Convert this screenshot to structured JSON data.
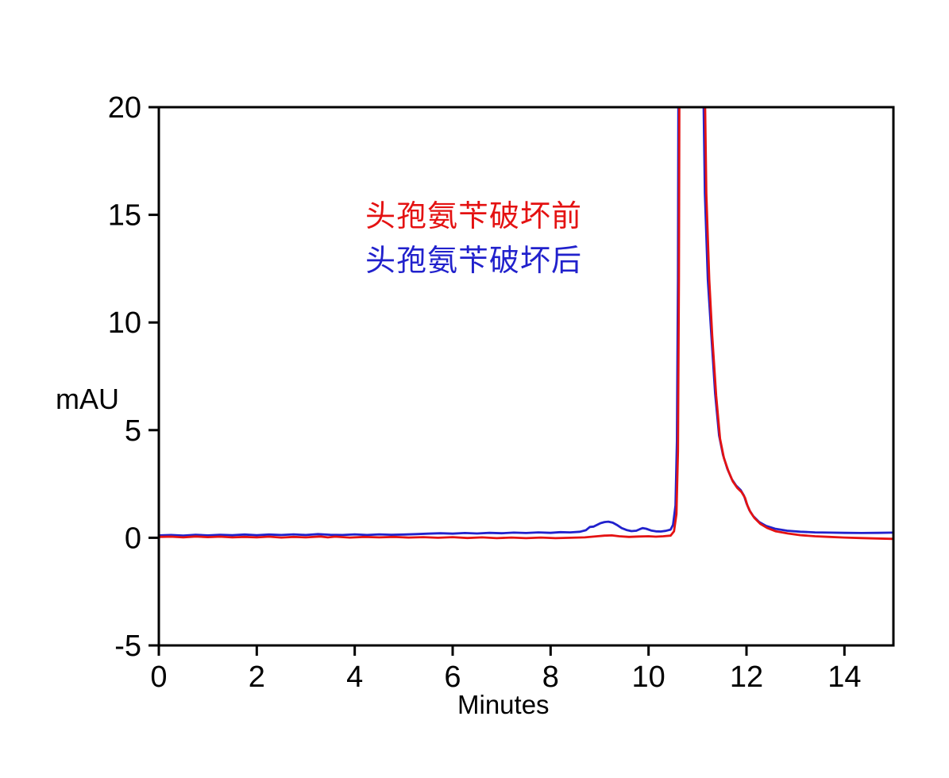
{
  "page": {
    "background": "#ffffff"
  },
  "chart_data": {
    "type": "line",
    "title": "",
    "xlabel": "Minutes",
    "ylabel": "mAU",
    "xlim": [
      0,
      15
    ],
    "ylim": [
      -5,
      20
    ],
    "x_ticks": [
      0,
      2,
      4,
      6,
      8,
      10,
      12,
      14
    ],
    "y_ticks": [
      -5,
      0,
      5,
      10,
      15,
      20
    ],
    "grid": false,
    "axis_color": "#000000",
    "legend_position": "inside-upper-center",
    "main_peak_offscale_above_mAU": 20,
    "series": [
      {
        "name": "头孢氨苄破坏前",
        "color": "#e41212",
        "points": [
          [
            0.0,
            0.04
          ],
          [
            0.25,
            0.05
          ],
          [
            0.5,
            0.02
          ],
          [
            0.75,
            0.06
          ],
          [
            1.0,
            0.03
          ],
          [
            1.25,
            0.05
          ],
          [
            1.5,
            0.02
          ],
          [
            1.75,
            0.04
          ],
          [
            2.0,
            0.02
          ],
          [
            2.25,
            0.05
          ],
          [
            2.5,
            0.01
          ],
          [
            2.75,
            0.04
          ],
          [
            3.0,
            0.02
          ],
          [
            3.3,
            0.06
          ],
          [
            3.45,
            0.02
          ],
          [
            3.6,
            0.05
          ],
          [
            3.9,
            0.01
          ],
          [
            4.2,
            0.04
          ],
          [
            4.5,
            0.02
          ],
          [
            4.8,
            0.04
          ],
          [
            5.1,
            0.01
          ],
          [
            5.4,
            0.03
          ],
          [
            5.7,
            0.0
          ],
          [
            6.0,
            0.03
          ],
          [
            6.3,
            -0.01
          ],
          [
            6.6,
            0.02
          ],
          [
            6.9,
            -0.02
          ],
          [
            7.2,
            0.01
          ],
          [
            7.5,
            -0.02
          ],
          [
            7.8,
            0.01
          ],
          [
            8.1,
            -0.02
          ],
          [
            8.4,
            0.0
          ],
          [
            8.7,
            0.02
          ],
          [
            8.95,
            0.07
          ],
          [
            9.1,
            0.1
          ],
          [
            9.25,
            0.11
          ],
          [
            9.4,
            0.07
          ],
          [
            9.6,
            0.04
          ],
          [
            9.8,
            0.06
          ],
          [
            10.0,
            0.07
          ],
          [
            10.15,
            0.05
          ],
          [
            10.3,
            0.07
          ],
          [
            10.45,
            0.1
          ],
          [
            10.52,
            0.3
          ],
          [
            10.57,
            1.1
          ],
          [
            10.6,
            4.0
          ],
          [
            10.62,
            12.0
          ],
          [
            10.65,
            40
          ],
          [
            10.72,
            120
          ],
          [
            10.95,
            120
          ],
          [
            11.08,
            40
          ],
          [
            11.13,
            24
          ],
          [
            11.18,
            16
          ],
          [
            11.24,
            12
          ],
          [
            11.3,
            9.4
          ],
          [
            11.38,
            6.6
          ],
          [
            11.46,
            4.6
          ],
          [
            11.54,
            3.7
          ],
          [
            11.63,
            3.1
          ],
          [
            11.72,
            2.62
          ],
          [
            11.81,
            2.32
          ],
          [
            11.9,
            2.12
          ],
          [
            11.97,
            1.85
          ],
          [
            12.02,
            1.5
          ],
          [
            12.08,
            1.2
          ],
          [
            12.16,
            0.92
          ],
          [
            12.28,
            0.65
          ],
          [
            12.42,
            0.46
          ],
          [
            12.6,
            0.3
          ],
          [
            12.85,
            0.2
          ],
          [
            13.1,
            0.12
          ],
          [
            13.4,
            0.07
          ],
          [
            13.7,
            0.04
          ],
          [
            14.0,
            0.01
          ],
          [
            14.3,
            -0.01
          ],
          [
            14.6,
            -0.03
          ],
          [
            15.0,
            -0.05
          ]
        ]
      },
      {
        "name": "头孢氨苄破坏后",
        "color": "#2121cc",
        "points": [
          [
            0.0,
            0.11
          ],
          [
            0.25,
            0.13
          ],
          [
            0.5,
            0.1
          ],
          [
            0.75,
            0.14
          ],
          [
            1.0,
            0.11
          ],
          [
            1.25,
            0.14
          ],
          [
            1.5,
            0.12
          ],
          [
            1.75,
            0.15
          ],
          [
            2.0,
            0.12
          ],
          [
            2.25,
            0.15
          ],
          [
            2.5,
            0.13
          ],
          [
            2.75,
            0.16
          ],
          [
            3.0,
            0.13
          ],
          [
            3.25,
            0.17
          ],
          [
            3.5,
            0.14
          ],
          [
            3.75,
            0.13
          ],
          [
            4.0,
            0.16
          ],
          [
            4.25,
            0.13
          ],
          [
            4.5,
            0.16
          ],
          [
            4.75,
            0.14
          ],
          [
            5.0,
            0.15
          ],
          [
            5.25,
            0.17
          ],
          [
            5.5,
            0.19
          ],
          [
            5.75,
            0.21
          ],
          [
            6.0,
            0.19
          ],
          [
            6.25,
            0.22
          ],
          [
            6.5,
            0.2
          ],
          [
            6.75,
            0.23
          ],
          [
            7.0,
            0.21
          ],
          [
            7.25,
            0.24
          ],
          [
            7.5,
            0.22
          ],
          [
            7.75,
            0.25
          ],
          [
            8.0,
            0.23
          ],
          [
            8.2,
            0.26
          ],
          [
            8.4,
            0.25
          ],
          [
            8.6,
            0.28
          ],
          [
            8.72,
            0.35
          ],
          [
            8.8,
            0.5
          ],
          [
            8.88,
            0.52
          ],
          [
            8.95,
            0.6
          ],
          [
            9.02,
            0.68
          ],
          [
            9.1,
            0.73
          ],
          [
            9.18,
            0.75
          ],
          [
            9.27,
            0.7
          ],
          [
            9.35,
            0.6
          ],
          [
            9.45,
            0.45
          ],
          [
            9.55,
            0.36
          ],
          [
            9.65,
            0.31
          ],
          [
            9.75,
            0.33
          ],
          [
            9.82,
            0.4
          ],
          [
            9.88,
            0.45
          ],
          [
            9.95,
            0.42
          ],
          [
            10.05,
            0.34
          ],
          [
            10.15,
            0.3
          ],
          [
            10.25,
            0.29
          ],
          [
            10.35,
            0.32
          ],
          [
            10.45,
            0.38
          ],
          [
            10.5,
            0.6
          ],
          [
            10.55,
            1.5
          ],
          [
            10.58,
            4.5
          ],
          [
            10.6,
            12
          ],
          [
            10.63,
            40
          ],
          [
            10.7,
            120
          ],
          [
            10.92,
            120
          ],
          [
            11.05,
            40
          ],
          [
            11.1,
            24
          ],
          [
            11.15,
            16
          ],
          [
            11.21,
            12
          ],
          [
            11.28,
            9.5
          ],
          [
            11.36,
            6.7
          ],
          [
            11.44,
            4.75
          ],
          [
            11.52,
            3.85
          ],
          [
            11.61,
            3.2
          ],
          [
            11.7,
            2.72
          ],
          [
            11.79,
            2.42
          ],
          [
            11.88,
            2.22
          ],
          [
            11.95,
            1.95
          ],
          [
            12.0,
            1.6
          ],
          [
            12.06,
            1.28
          ],
          [
            12.14,
            1.0
          ],
          [
            12.26,
            0.73
          ],
          [
            12.4,
            0.55
          ],
          [
            12.58,
            0.42
          ],
          [
            12.83,
            0.33
          ],
          [
            13.1,
            0.28
          ],
          [
            13.4,
            0.25
          ],
          [
            13.7,
            0.24
          ],
          [
            14.0,
            0.23
          ],
          [
            14.35,
            0.22
          ],
          [
            14.7,
            0.23
          ],
          [
            15.0,
            0.24
          ]
        ]
      }
    ]
  }
}
